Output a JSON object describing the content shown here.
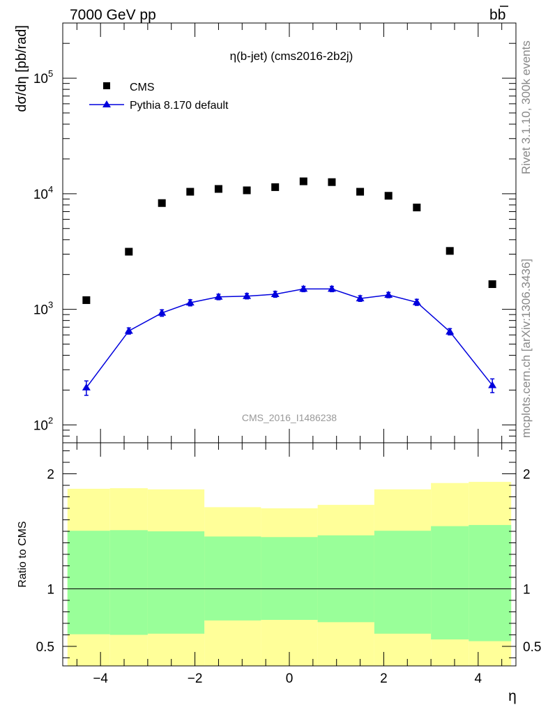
{
  "header": {
    "energy_label": "7000 GeV pp",
    "process_main": "b",
    "process_bar": "b"
  },
  "side_texts": {
    "rivet": "Rivet 3.1.10,  300k events",
    "mcplots": "mcplots.cern.ch [arXiv:1306.3436]"
  },
  "chart_data": [
    {
      "type": "scatter",
      "panel": "main",
      "title": "η(b-jet) (cms2016-2b2j)",
      "ylabel": "dσ/dη [pb/rad]",
      "xlabel": "",
      "yscale": "log",
      "xlim": [
        -4.8,
        4.8
      ],
      "ylim": [
        70,
        300000
      ],
      "watermark": "CMS_2016_I1486238",
      "legend_position": "top-left",
      "x": [
        -4.3,
        -3.4,
        -2.7,
        -2.1,
        -1.5,
        -0.9,
        -0.3,
        0.3,
        0.9,
        1.5,
        2.1,
        2.7,
        3.4,
        4.3
      ],
      "series": [
        {
          "name": "CMS",
          "marker": "square",
          "color": "#000000",
          "values": [
            1200,
            3150,
            8300,
            10400,
            11000,
            10700,
            11400,
            12800,
            12600,
            10400,
            9600,
            7600,
            3200,
            1650
          ]
        },
        {
          "name": "Pythia 8.170 default",
          "marker": "triangle",
          "color": "#0000dd",
          "values": [
            210,
            650,
            930,
            1140,
            1280,
            1300,
            1350,
            1500,
            1500,
            1240,
            1330,
            1150,
            640,
            220
          ],
          "err_low": [
            30,
            40,
            60,
            70,
            70,
            70,
            80,
            80,
            80,
            70,
            70,
            70,
            40,
            30
          ],
          "err_high": [
            30,
            40,
            60,
            70,
            70,
            70,
            80,
            80,
            80,
            70,
            70,
            70,
            40,
            30
          ]
        }
      ],
      "x_ticks": [
        "−4",
        "−2",
        "0",
        "2",
        "4"
      ],
      "y_ticks": [
        "10",
        "10",
        "10",
        "10"
      ],
      "y_tick_exponents": [
        "2",
        "3",
        "4",
        "5"
      ]
    },
    {
      "type": "area",
      "panel": "ratio",
      "ylabel": "Ratio to CMS",
      "xlabel": "η",
      "xlim": [
        -4.8,
        4.8
      ],
      "ylim": [
        0.33,
        2.27
      ],
      "reference_line": 1,
      "bins": [
        [
          -4.7,
          -3.8
        ],
        [
          -3.8,
          -3.0
        ],
        [
          -3.0,
          -1.8
        ],
        [
          -1.8,
          -0.6
        ],
        [
          -0.6,
          0.6
        ],
        [
          0.6,
          1.8
        ],
        [
          1.8,
          3.0
        ],
        [
          3.0,
          3.8
        ],
        [
          3.8,
          4.7
        ]
      ],
      "outer_band": {
        "color": "#ffff99",
        "upper": [
          1.87,
          1.875,
          1.865,
          1.71,
          1.7,
          1.73,
          1.865,
          1.92,
          1.93
        ],
        "lower": [
          0,
          0,
          0,
          0,
          0,
          0,
          0,
          0,
          0
        ]
      },
      "inner_band": {
        "color": "#99ff99",
        "upper": [
          1.505,
          1.51,
          1.5,
          1.455,
          1.45,
          1.465,
          1.505,
          1.545,
          1.555
        ],
        "lower": [
          0.605,
          0.6,
          0.61,
          0.725,
          0.73,
          0.71,
          0.61,
          0.56,
          0.545
        ]
      },
      "x_ticks": [
        "−4",
        "−2",
        "0",
        "2",
        "4"
      ],
      "y_ticks": [
        "0.5",
        "1",
        "2"
      ],
      "y_tick_values": [
        0.5,
        1,
        2
      ]
    }
  ]
}
